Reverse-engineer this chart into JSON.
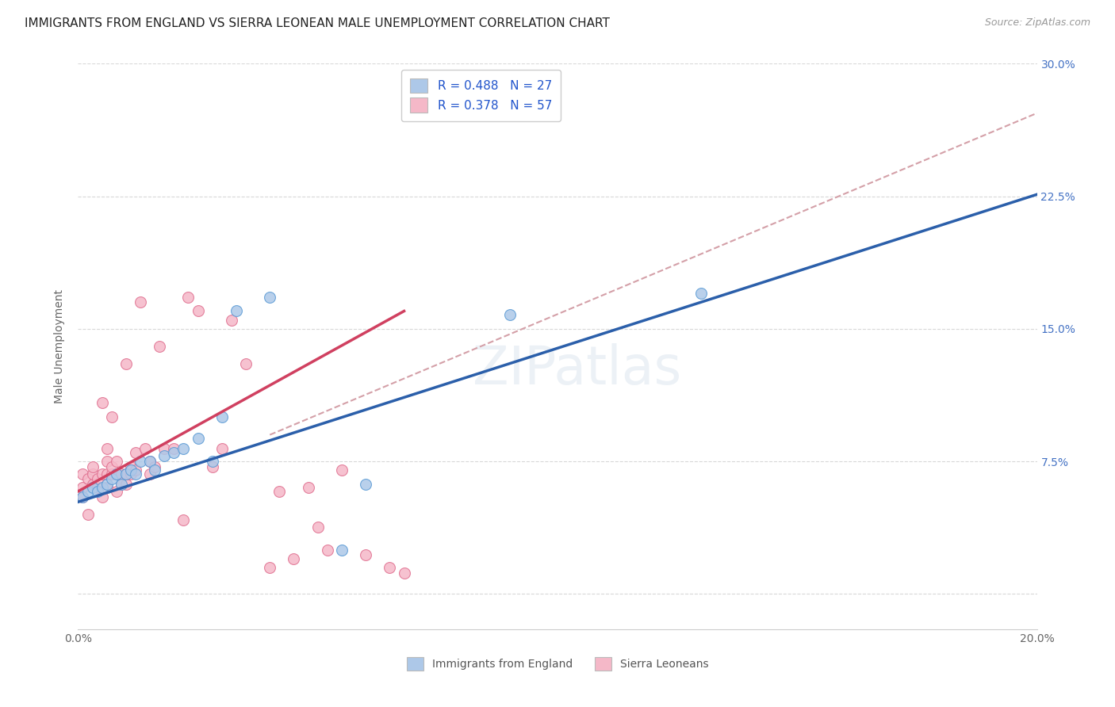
{
  "title": "IMMIGRANTS FROM ENGLAND VS SIERRA LEONEAN MALE UNEMPLOYMENT CORRELATION CHART",
  "source": "Source: ZipAtlas.com",
  "ylabel": "Male Unemployment",
  "xlim": [
    0.0,
    0.2
  ],
  "ylim": [
    -0.02,
    0.3
  ],
  "plot_ylim": [
    0.0,
    0.3
  ],
  "xticks": [
    0.0,
    0.05,
    0.1,
    0.15,
    0.2
  ],
  "xtick_labels": [
    "0.0%",
    "",
    "",
    "",
    "20.0%"
  ],
  "yticks": [
    0.0,
    0.075,
    0.15,
    0.225,
    0.3
  ],
  "ytick_labels_right": [
    "",
    "7.5%",
    "15.0%",
    "22.5%",
    "30.0%"
  ],
  "england_face_color": "#adc8e8",
  "england_edge_color": "#5b9bd5",
  "sierra_face_color": "#f5b8c8",
  "sierra_edge_color": "#e07090",
  "england_line_color": "#2b5faa",
  "sierra_line_color": "#d04060",
  "dashed_line_color": "#d4a0a8",
  "grid_color": "#d8d8d8",
  "right_tick_color": "#4472c4",
  "background_color": "#ffffff",
  "england_points_x": [
    0.001,
    0.002,
    0.003,
    0.004,
    0.005,
    0.006,
    0.007,
    0.008,
    0.009,
    0.01,
    0.011,
    0.012,
    0.013,
    0.015,
    0.016,
    0.018,
    0.02,
    0.022,
    0.025,
    0.028,
    0.03,
    0.033,
    0.04,
    0.055,
    0.06,
    0.09,
    0.13
  ],
  "england_points_y": [
    0.055,
    0.058,
    0.06,
    0.058,
    0.06,
    0.062,
    0.065,
    0.068,
    0.062,
    0.068,
    0.07,
    0.068,
    0.075,
    0.075,
    0.07,
    0.078,
    0.08,
    0.082,
    0.088,
    0.075,
    0.1,
    0.16,
    0.168,
    0.025,
    0.062,
    0.158,
    0.17
  ],
  "sierra_points_x": [
    0.001,
    0.001,
    0.001,
    0.002,
    0.002,
    0.003,
    0.003,
    0.003,
    0.004,
    0.004,
    0.005,
    0.005,
    0.005,
    0.006,
    0.006,
    0.006,
    0.006,
    0.007,
    0.007,
    0.007,
    0.008,
    0.008,
    0.008,
    0.009,
    0.009,
    0.01,
    0.01,
    0.01,
    0.011,
    0.011,
    0.012,
    0.012,
    0.013,
    0.014,
    0.015,
    0.015,
    0.016,
    0.017,
    0.018,
    0.02,
    0.022,
    0.023,
    0.025,
    0.028,
    0.03,
    0.032,
    0.035,
    0.04,
    0.042,
    0.045,
    0.048,
    0.05,
    0.052,
    0.055,
    0.06,
    0.065,
    0.068
  ],
  "sierra_points_y": [
    0.055,
    0.06,
    0.068,
    0.045,
    0.065,
    0.062,
    0.068,
    0.072,
    0.06,
    0.065,
    0.055,
    0.068,
    0.108,
    0.06,
    0.068,
    0.075,
    0.082,
    0.068,
    0.072,
    0.1,
    0.058,
    0.068,
    0.075,
    0.062,
    0.068,
    0.062,
    0.068,
    0.13,
    0.068,
    0.072,
    0.07,
    0.08,
    0.165,
    0.082,
    0.068,
    0.075,
    0.072,
    0.14,
    0.082,
    0.082,
    0.042,
    0.168,
    0.16,
    0.072,
    0.082,
    0.155,
    0.13,
    0.015,
    0.058,
    0.02,
    0.06,
    0.038,
    0.025,
    0.07,
    0.022,
    0.015,
    0.012
  ],
  "england_line_x": [
    0.0,
    0.2
  ],
  "england_line_y": [
    0.052,
    0.226
  ],
  "sierra_line_x": [
    0.0,
    0.068
  ],
  "sierra_line_y": [
    0.058,
    0.16
  ],
  "dashed_line_x": [
    0.04,
    0.2
  ],
  "dashed_line_y": [
    0.09,
    0.272
  ],
  "title_fontsize": 11,
  "axis_label_fontsize": 10,
  "tick_fontsize": 10,
  "marker_size": 100
}
